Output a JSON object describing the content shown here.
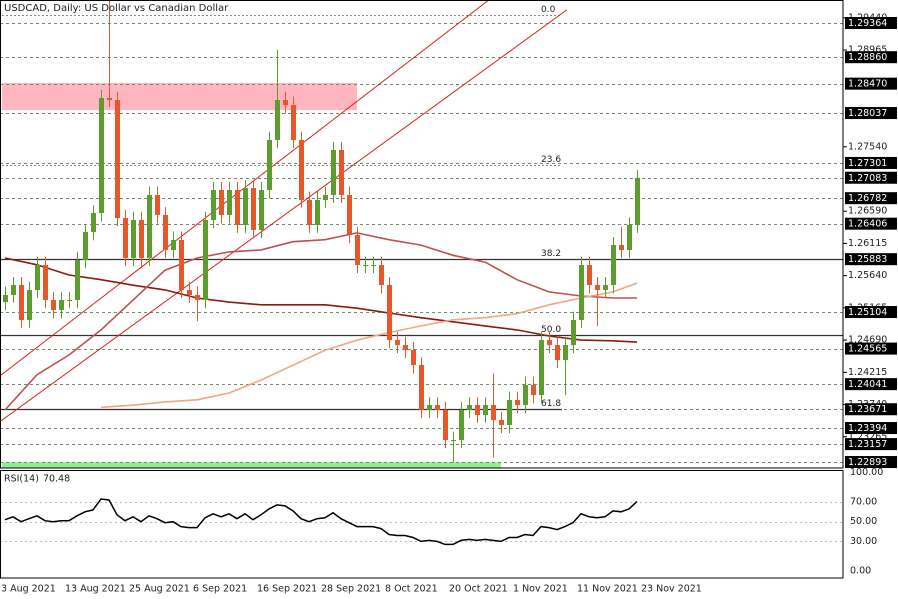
{
  "chart_data": {
    "type": "candlestick",
    "title": "USDCAD, Daily:  US Dollar vs Canadian Dollar",
    "categories": [
      null,
      "3 Aug 2021",
      null,
      null,
      null,
      null,
      null,
      null,
      null,
      "13 Aug 2021",
      null,
      null,
      null,
      null,
      null,
      null,
      null,
      "25 Aug 2021",
      null,
      null,
      null,
      null,
      null,
      null,
      null,
      "6 Sep 2021",
      null,
      null,
      null,
      null,
      null,
      null,
      null,
      "16 Sep 2021",
      null,
      null,
      null,
      null,
      null,
      null,
      null,
      "28 Sep 2021",
      null,
      null,
      null,
      null,
      null,
      null,
      null,
      "8 Oct 2021",
      null,
      null,
      null,
      null,
      null,
      null,
      null,
      "20 Oct 2021",
      null,
      null,
      null,
      null,
      null,
      null,
      null,
      "1 Nov 2021",
      null,
      null,
      null,
      null,
      null,
      null,
      null,
      "11 Nov 2021",
      null,
      null,
      null,
      null,
      null,
      null,
      null,
      "23 Nov 2021"
    ],
    "open": [
      1.2525,
      1.25355,
      1.25502,
      1.24986,
      1.25428,
      1.25797,
      1.25281,
      1.25134,
      1.25281,
      1.25281,
      1.25871,
      1.26283,
      1.26563,
      1.28258,
      1.28229,
      1.2649,
      1.259,
      1.2646,
      1.259,
      1.26829,
      1.26534,
      1.26018,
      1.26165,
      1.25428,
      1.25355,
      1.25281,
      1.2646,
      1.26902,
      1.26534,
      1.26902,
      1.26386,
      1.26932,
      1.26313,
      1.26902,
      1.27639,
      1.28229,
      1.28155,
      1.27639,
      1.26755,
      1.26386,
      1.26755,
      1.26829,
      1.27492,
      1.26829,
      1.26239,
      1.25797,
      1.25797,
      1.25797,
      1.25502,
      1.24691,
      1.24618,
      1.24544,
      1.24323,
      1.2366,
      1.23733,
      1.2366,
      1.23217,
      1.23217,
      1.2366,
      1.23733,
      1.23586,
      1.23733,
      1.23512,
      1.23438,
      1.23807,
      1.23733,
      1.24028,
      1.23881,
      1.24691,
      1.24618,
      1.24397,
      1.24618,
      1.24986,
      1.25797,
      1.25502,
      1.25428,
      1.25502,
      1.26092,
      1.26018,
      1.26386,
      null,
      null
    ],
    "high": [
      1.2548,
      1.2562,
      1.2562,
      1.2555,
      1.2592,
      1.2592,
      1.254,
      1.254,
      1.254,
      1.2599,
      1.264,
      1.2668,
      1.2838,
      1.297,
      1.2835,
      1.2661,
      1.2658,
      1.2658,
      1.2695,
      1.2695,
      1.2665,
      1.2629,
      1.2629,
      1.2555,
      1.2548,
      1.2658,
      1.2702,
      1.2702,
      1.2702,
      1.2702,
      1.2705,
      1.2705,
      1.2702,
      1.2776,
      1.2897,
      1.2835,
      1.2828,
      1.2776,
      1.2688,
      1.2688,
      1.2695,
      1.2761,
      1.2761,
      1.2695,
      1.2636,
      1.2592,
      1.2592,
      1.2592,
      1.2562,
      1.2481,
      1.2474,
      1.2466,
      1.2444,
      1.2385,
      1.2385,
      1.2378,
      1.2334,
      1.2378,
      1.2385,
      1.2385,
      1.2385,
      1.242,
      1.2363,
      1.2393,
      1.2393,
      1.2415,
      1.2415,
      1.2481,
      1.2481,
      1.2474,
      1.2474,
      1.2511,
      1.2592,
      1.2592,
      1.2562,
      1.2562,
      1.2621,
      1.2636,
      1.265,
      1.272,
      null,
      null
    ],
    "low": [
      1.2513,
      1.2524,
      1.2487,
      1.2487,
      1.2531,
      1.2516,
      1.2501,
      1.2501,
      1.2516,
      1.2516,
      1.2575,
      1.2616,
      1.2644,
      1.2812,
      1.2637,
      1.2578,
      1.2578,
      1.2578,
      1.2578,
      1.2641,
      1.259,
      1.259,
      1.2531,
      1.2524,
      1.2497,
      1.2516,
      1.2634,
      1.2641,
      1.2641,
      1.2627,
      1.2627,
      1.2619,
      1.2619,
      1.2678,
      1.2752,
      1.2803,
      1.2752,
      1.2664,
      1.2627,
      1.2627,
      1.2664,
      1.2671,
      1.2671,
      1.2612,
      1.2568,
      1.2568,
      1.2568,
      1.2538,
      1.2457,
      1.245,
      1.2443,
      1.242,
      1.2354,
      1.2354,
      1.2354,
      1.231,
      1.2289,
      1.231,
      1.2354,
      1.2347,
      1.2347,
      1.2296,
      1.2332,
      1.2332,
      1.2361,
      1.2361,
      1.2376,
      1.2376,
      1.245,
      1.2428,
      1.2388,
      1.245,
      1.2487,
      1.2538,
      1.249,
      1.2531,
      1.2538,
      1.259,
      1.259,
      1.2627,
      null,
      null
    ],
    "close": [
      1.25355,
      1.25502,
      1.24986,
      1.25428,
      1.25797,
      1.25281,
      1.25134,
      1.25281,
      1.25281,
      1.25871,
      1.26283,
      1.26563,
      1.28258,
      1.28229,
      1.2649,
      1.259,
      1.2646,
      1.259,
      1.26829,
      1.26534,
      1.26018,
      1.26165,
      1.25428,
      1.25355,
      1.25281,
      1.2646,
      1.26902,
      1.26534,
      1.26902,
      1.26386,
      1.26932,
      1.26313,
      1.26902,
      1.27639,
      1.28229,
      1.28155,
      1.27639,
      1.26755,
      1.26386,
      1.26755,
      1.26829,
      1.27492,
      1.26829,
      1.26239,
      1.25797,
      1.25797,
      1.25797,
      1.25502,
      1.24691,
      1.24618,
      1.24544,
      1.24323,
      1.2366,
      1.23733,
      1.2366,
      1.23217,
      1.23217,
      1.2366,
      1.23733,
      1.23586,
      1.23733,
      1.23512,
      1.23438,
      1.23807,
      1.23733,
      1.24028,
      1.23881,
      1.24691,
      1.24618,
      1.24397,
      1.24618,
      1.24986,
      1.25797,
      1.25502,
      1.25428,
      1.25502,
      1.26092,
      1.26018,
      1.26386,
      1.27083,
      null,
      null
    ],
    "color_up": "#5b9e2f",
    "color_down": "#e8572a",
    "ylim": [
      1.22805,
      1.29703
    ],
    "yticks": [
      {
        "value": 1.2944,
        "label": "1.29440"
      },
      1.28965,
      {
        "value": 1.2754,
        "label": "1.27540"
      },
      {
        "value": 1.2659,
        "label": "1.26590"
      },
      1.26115,
      {
        "value": 1.2564,
        "label": "1.25640"
      },
      1.25165,
      {
        "value": 1.2469,
        "label": "1.24690"
      },
      1.24215,
      {
        "value": 1.2374,
        "label": "1.23740"
      },
      1.23265
    ],
    "levels": [
      1.29364,
      {
        "value": 1.2886,
        "label": "1.28860"
      },
      {
        "value": 1.2847,
        "label": "1.28470"
      },
      1.28037,
      1.27301,
      1.27083,
      1.26782,
      1.26406,
      1.25883,
      1.25104,
      1.24565,
      1.24041,
      1.23671,
      1.23394,
      1.23157,
      1.22893
    ],
    "level_color": "#6b8e6b",
    "fibonacci": [
      {
        "label": "0.0",
        "price": 1.29482
      },
      {
        "label": "23.6",
        "price": 1.27271
      },
      {
        "label": "38.2",
        "price": 1.25885
      },
      {
        "label": "50.0",
        "price": 1.24765
      },
      {
        "label": "61.8",
        "price": 1.23674
      }
    ],
    "support_lines": [
      1.25885,
      1.24765,
      1.23674
    ],
    "zones": [
      {
        "from": 1.2808,
        "to": 1.2848,
        "start": 0,
        "end": 44,
        "color": "#ffb6c1"
      },
      {
        "from": 1.22805,
        "to": 1.2289,
        "start": 0,
        "end": 62,
        "color": "#90ee90"
      }
    ],
    "trendlines": [
      {
        "x": [
          0,
          60
        ],
        "y": [
          1.2422,
          1.2966
        ],
        "color": "#e0201b"
      },
      {
        "x": [
          0,
          69
        ],
        "y": [
          1.23542,
          1.29452
        ],
        "color": "#e0201b"
      }
    ],
    "moving_averages": [
      {
        "color": "#8b1a10",
        "x": [
          0,
          4,
          8,
          12,
          16,
          20,
          24,
          28,
          32,
          36,
          40,
          44,
          48,
          52,
          56,
          60,
          64,
          68,
          72,
          76,
          79
        ],
        "values": [
          1.259,
          1.258,
          1.2565,
          1.2558,
          1.255,
          1.2543,
          1.2531,
          1.2525,
          1.2521,
          1.2521,
          1.2521,
          1.2516,
          1.2509,
          1.2502,
          1.2496,
          1.249,
          1.2484,
          1.2475,
          1.2469,
          1.2468,
          1.2466
        ]
      },
      {
        "color": "#c0504d",
        "x": [
          0,
          4,
          8,
          12,
          16,
          20,
          24,
          28,
          32,
          36,
          40,
          44,
          48,
          52,
          56,
          60,
          64,
          68,
          72,
          76,
          79
        ],
        "values": [
          1.2366,
          1.2418,
          1.2447,
          1.2484,
          1.2528,
          1.2572,
          1.259,
          1.2599,
          1.2602,
          1.2614,
          1.2617,
          1.2627,
          1.2617,
          1.2609,
          1.2594,
          1.2584,
          1.2558,
          1.254,
          1.2534,
          1.2531,
          1.2531
        ]
      },
      {
        "color": "#f4a582",
        "x": [
          0,
          4,
          8,
          12,
          16,
          20,
          24,
          28,
          32,
          36,
          40,
          44,
          48,
          52,
          56,
          60,
          64,
          68,
          72,
          76,
          79
        ],
        "values": [
          null,
          null,
          null,
          1.237,
          1.2373,
          1.2378,
          1.2381,
          1.2391,
          1.241,
          1.2432,
          1.2454,
          1.2469,
          1.248,
          1.249,
          1.2499,
          1.2502,
          1.2508,
          1.2521,
          1.2531,
          1.254,
          1.2553
        ]
      }
    ],
    "rsi": {
      "name": "RSI(14)",
      "color": "#000000",
      "ylim": [
        0,
        100
      ],
      "yticks": [
        {
          "value": 100,
          "label": "100.00"
        },
        {
          "value": 70,
          "label": "70.00"
        },
        {
          "value": 50,
          "label": "50.00"
        },
        {
          "value": 30,
          "label": "30.00"
        },
        {
          "value": 0,
          "label": "0.00"
        }
      ],
      "values": [
        52,
        55,
        50,
        53,
        56,
        51,
        50,
        51,
        51,
        56,
        60,
        62,
        73,
        72,
        57,
        51,
        55,
        50,
        56,
        53,
        49,
        50,
        45,
        44,
        44,
        54,
        58,
        55,
        58,
        53,
        58,
        52,
        57,
        63,
        67,
        66,
        61,
        53,
        50,
        53,
        54,
        59,
        53,
        49,
        45,
        45,
        45,
        43,
        37,
        36,
        36,
        34,
        30,
        31,
        30,
        27,
        27,
        31,
        32,
        31,
        32,
        31,
        30,
        34,
        34,
        37,
        36,
        45,
        44,
        42,
        45,
        49,
        58,
        55,
        54,
        55,
        61,
        60,
        63,
        70.48,
        null,
        null
      ]
    }
  }
}
